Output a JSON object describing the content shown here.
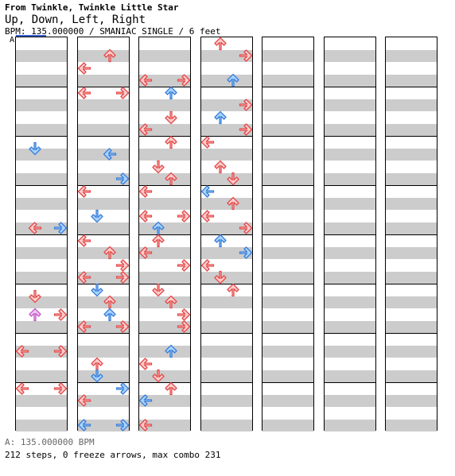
{
  "header": {
    "source": "From Twinkle, Twinkle Little Star",
    "title": "Up, Down, Left, Right",
    "meta": "BPM: 135.000000 / SMANIAC SINGLE / 6 feet",
    "bpm_marker": "A"
  },
  "footer": {
    "bpm_legend": "A: 135.000000 BPM",
    "stats": "212 steps, 0 freeze arrows, max combo 231"
  },
  "colors": {
    "quarter_fill": "#ffcccc",
    "quarter_stroke": "#e34a4a",
    "eighth_fill": "#a9d4ff",
    "eighth_stroke": "#3a7ed8",
    "sixteenth_fill": "#f2c7f5",
    "sixteenth_stroke": "#c158c8",
    "stripe": "#cccccc"
  },
  "chart": {
    "columns": 7,
    "measures_per_column": 8,
    "notes": [
      [
        1,
        8.5,
        "D",
        1
      ],
      [
        1,
        15,
        "L",
        0
      ],
      [
        3,
        15,
        "R",
        1
      ],
      [
        1,
        20.5,
        "D",
        0
      ],
      [
        1,
        22,
        "U",
        2
      ],
      [
        3,
        22,
        "R",
        0
      ],
      [
        0,
        25,
        "L",
        0
      ],
      [
        3,
        25,
        "R",
        0
      ],
      [
        0,
        28,
        "L",
        0
      ],
      [
        3,
        28,
        "R",
        0
      ],
      [
        2,
        33,
        "U",
        0
      ],
      [
        0,
        34,
        "L",
        0
      ],
      [
        0,
        36,
        "L",
        0
      ],
      [
        3,
        36,
        "R",
        0
      ],
      [
        2,
        41,
        "L",
        1
      ],
      [
        3,
        43,
        "R",
        1
      ],
      [
        0,
        44,
        "L",
        0
      ],
      [
        1,
        46,
        "D",
        1
      ],
      [
        0,
        48,
        "L",
        0
      ],
      [
        2,
        49,
        "U",
        0
      ],
      [
        3,
        50,
        "R",
        0
      ],
      [
        0,
        51,
        "L",
        0
      ],
      [
        3,
        51,
        "R",
        0
      ],
      [
        1,
        52,
        "D",
        1
      ],
      [
        2,
        53,
        "U",
        0
      ],
      [
        2,
        54,
        "U",
        1
      ],
      [
        0,
        55,
        "L",
        0
      ],
      [
        3,
        55,
        "R",
        0
      ],
      [
        1,
        58,
        "U",
        0
      ],
      [
        1,
        59,
        "D",
        1
      ],
      [
        3,
        60,
        "R",
        1
      ],
      [
        0,
        61,
        "L",
        0
      ],
      [
        0,
        63,
        "L",
        1
      ],
      [
        3,
        63,
        "R",
        1
      ],
      [
        0,
        67,
        "L",
        0
      ],
      [
        3,
        67,
        "R",
        0
      ],
      [
        2,
        68,
        "U",
        1
      ],
      [
        2,
        70,
        "D",
        0
      ],
      [
        0,
        71,
        "L",
        0
      ],
      [
        2,
        72,
        "U",
        0
      ],
      [
        1,
        74,
        "D",
        0
      ],
      [
        2,
        75,
        "U",
        0
      ],
      [
        0,
        76,
        "L",
        0
      ],
      [
        0,
        78,
        "L",
        0
      ],
      [
        3,
        78,
        "R",
        0
      ],
      [
        1,
        79,
        "U",
        1
      ],
      [
        1,
        80,
        "U",
        0
      ],
      [
        0,
        81,
        "L",
        0
      ],
      [
        3,
        82,
        "R",
        0
      ],
      [
        1,
        84,
        "D",
        0
      ],
      [
        2,
        85,
        "U",
        0
      ],
      [
        3,
        86,
        "R",
        0
      ],
      [
        3,
        87,
        "R",
        0
      ],
      [
        2,
        89,
        "U",
        1
      ],
      [
        0,
        90,
        "L",
        0
      ],
      [
        1,
        91,
        "D",
        0
      ],
      [
        2,
        92,
        "U",
        0
      ],
      [
        0,
        93,
        "L",
        1
      ],
      [
        0,
        95,
        "L",
        0
      ],
      [
        1,
        96,
        "U",
        0
      ],
      [
        3,
        97,
        "R",
        0
      ],
      [
        2,
        99,
        "U",
        1
      ],
      [
        3,
        101,
        "R",
        0
      ],
      [
        1,
        102,
        "U",
        1
      ],
      [
        3,
        103,
        "R",
        0
      ],
      [
        0,
        104,
        "L",
        0
      ],
      [
        1,
        106,
        "U",
        0
      ],
      [
        2,
        107,
        "D",
        0
      ],
      [
        0,
        108,
        "L",
        1
      ],
      [
        2,
        109,
        "U",
        0
      ],
      [
        0,
        110,
        "L",
        0
      ],
      [
        3,
        111,
        "R",
        0
      ],
      [
        1,
        112,
        "U",
        1
      ],
      [
        3,
        113,
        "R",
        1
      ],
      [
        0,
        114,
        "L",
        0
      ],
      [
        1,
        115,
        "D",
        0
      ],
      [
        2,
        116,
        "U",
        0
      ]
    ]
  }
}
